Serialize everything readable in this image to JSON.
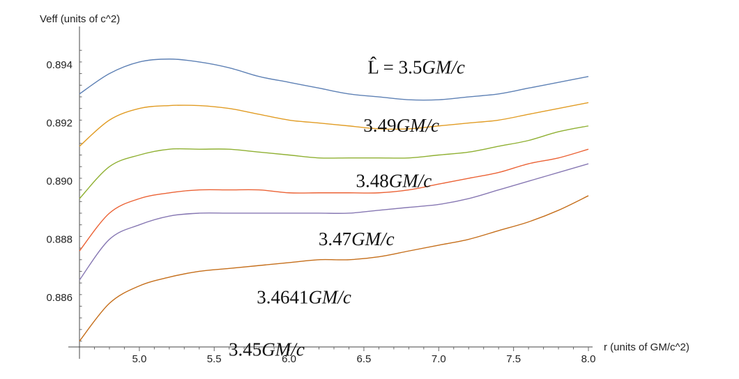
{
  "chart_data": {
    "type": "line",
    "xlabel": "r (units of GM/c^2)",
    "ylabel": "Veff (units of c^2)",
    "xlim": [
      4.6,
      8.0
    ],
    "ylim": [
      0.8843,
      0.8952
    ],
    "x_ticks": [
      5.0,
      5.5,
      6.0,
      6.5,
      7.0,
      7.5,
      8.0
    ],
    "x_tick_labels": [
      "5.0",
      "5.5",
      "6.0",
      "6.5",
      "7.0",
      "7.5",
      "8.0"
    ],
    "y_ticks": [
      0.886,
      0.888,
      0.89,
      0.892,
      0.894
    ],
    "y_tick_labels": [
      "0.886",
      "0.888",
      "0.890",
      "0.892",
      "0.894"
    ],
    "grid": false,
    "legend": "none",
    "series": [
      {
        "color": "#5e81b5",
        "label_prefix": "L̂ = 3.5",
        "label_suffix": "GM/c",
        "label_at": [
          6.85,
          0.8937
        ],
        "x": [
          4.6,
          4.8,
          5.0,
          5.2,
          5.4,
          5.6,
          5.8,
          6.0,
          6.2,
          6.4,
          6.6,
          6.8,
          7.0,
          7.2,
          7.4,
          7.6,
          7.8,
          8.0
        ],
        "y": [
          0.893,
          0.8937,
          0.8941,
          0.8942,
          0.8941,
          0.8939,
          0.8936,
          0.8934,
          0.8932,
          0.893,
          0.8929,
          0.8928,
          0.8928,
          0.8929,
          0.893,
          0.8932,
          0.8934,
          0.8936
        ]
      },
      {
        "color": "#e19c24",
        "label_prefix": "3.49",
        "label_suffix": "GM/c",
        "label_at": [
          6.75,
          0.8917
        ],
        "x": [
          4.6,
          4.8,
          5.0,
          5.2,
          5.4,
          5.6,
          5.8,
          6.0,
          6.2,
          6.4,
          6.6,
          6.8,
          7.0,
          7.2,
          7.4,
          7.6,
          7.8,
          8.0
        ],
        "y": [
          0.8912,
          0.8921,
          0.8925,
          0.8926,
          0.8926,
          0.8925,
          0.8923,
          0.8921,
          0.892,
          0.8919,
          0.8918,
          0.8918,
          0.8919,
          0.892,
          0.8921,
          0.8923,
          0.8925,
          0.8927
        ]
      },
      {
        "color": "#8fb032",
        "label_prefix": "3.48",
        "label_suffix": "GM/c",
        "label_at": [
          6.7,
          0.8898
        ],
        "x": [
          4.6,
          4.8,
          5.0,
          5.2,
          5.4,
          5.6,
          5.8,
          6.0,
          6.2,
          6.4,
          6.6,
          6.8,
          7.0,
          7.2,
          7.4,
          7.6,
          7.8,
          8.0
        ],
        "y": [
          0.8894,
          0.8905,
          0.8909,
          0.8911,
          0.8911,
          0.8911,
          0.891,
          0.8909,
          0.8908,
          0.8908,
          0.8908,
          0.8908,
          0.8909,
          0.891,
          0.8912,
          0.8914,
          0.8917,
          0.8919
        ]
      },
      {
        "color": "#eb6235",
        "label_prefix": "3.47",
        "label_suffix": "GM/c",
        "label_at": [
          6.45,
          0.8878
        ],
        "x": [
          4.6,
          4.8,
          5.0,
          5.2,
          5.4,
          5.6,
          5.8,
          6.0,
          6.2,
          6.4,
          6.6,
          6.8,
          7.0,
          7.2,
          7.4,
          7.6,
          7.8,
          8.0
        ],
        "y": [
          0.8876,
          0.8889,
          0.8894,
          0.8896,
          0.8897,
          0.8897,
          0.8897,
          0.8896,
          0.8896,
          0.8896,
          0.8896,
          0.8897,
          0.8899,
          0.8901,
          0.8903,
          0.8906,
          0.8908,
          0.8911
        ]
      },
      {
        "color": "#8778b3",
        "label_prefix": "3.4641",
        "label_suffix": "GM/c",
        "label_at": [
          6.1,
          0.8858
        ],
        "x": [
          4.6,
          4.8,
          5.0,
          5.2,
          5.4,
          5.6,
          5.8,
          6.0,
          6.2,
          6.4,
          6.6,
          6.8,
          7.0,
          7.2,
          7.4,
          7.6,
          7.8,
          8.0
        ],
        "y": [
          0.8866,
          0.888,
          0.8885,
          0.8888,
          0.8889,
          0.8889,
          0.8889,
          0.8889,
          0.8889,
          0.8889,
          0.889,
          0.8891,
          0.8892,
          0.8894,
          0.8897,
          0.89,
          0.8903,
          0.8906
        ]
      },
      {
        "color": "#c56e1a",
        "label_prefix": "3.45",
        "label_suffix": "GM/c",
        "label_at": [
          5.85,
          0.884
        ],
        "x": [
          4.6,
          4.8,
          5.0,
          5.2,
          5.4,
          5.6,
          5.8,
          6.0,
          6.2,
          6.4,
          6.6,
          6.8,
          7.0,
          7.2,
          7.4,
          7.6,
          7.8,
          8.0
        ],
        "y": [
          0.8845,
          0.8858,
          0.8864,
          0.8867,
          0.8869,
          0.887,
          0.8871,
          0.8872,
          0.8873,
          0.8873,
          0.8874,
          0.8876,
          0.8878,
          0.888,
          0.8883,
          0.8886,
          0.889,
          0.8895
        ]
      }
    ]
  }
}
